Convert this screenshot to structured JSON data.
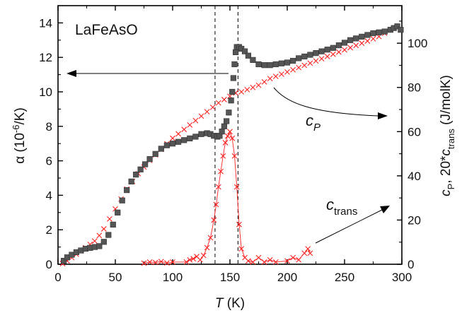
{
  "chart_data": {
    "type": "scatter",
    "sample_label": "LaFeAsO",
    "x_axis": {
      "label_italic": "T",
      "label_rest": " (K)",
      "range": [
        0,
        300
      ],
      "ticks": [
        0,
        50,
        100,
        150,
        200,
        250,
        300
      ],
      "tick_labels": [
        "0",
        "50",
        "100",
        "150",
        "200",
        "250",
        "300"
      ]
    },
    "y_left": {
      "label_prefix": "α (10",
      "label_sup": "-6",
      "label_suffix": "/K)",
      "range": [
        0,
        15
      ],
      "ticks": [
        0,
        2,
        4,
        6,
        8,
        10,
        12,
        14
      ],
      "tick_labels": [
        "0",
        "2",
        "4",
        "6",
        "8",
        "10",
        "12",
        "14"
      ]
    },
    "y_right": {
      "label_c1": "c",
      "label_sub1": "P",
      "label_mid": ", 20*",
      "label_c2": "c",
      "label_sub2": "trans",
      "label_units": " (J/molK)",
      "range": [
        0,
        117
      ],
      "ticks": [
        0,
        20,
        40,
        60,
        80,
        100
      ],
      "tick_labels": [
        "0",
        "20",
        "40",
        "60",
        "80",
        "100"
      ]
    },
    "vertical_dashed_lines_x": [
      137,
      157
    ],
    "annotations": {
      "cp_main": "c",
      "cp_sub": "P",
      "ctrans_main": "c",
      "ctrans_sub": "trans"
    },
    "series": [
      {
        "axis": "left",
        "marker": "square",
        "color": "#555555",
        "x": [
          5,
          8,
          12,
          16,
          20,
          24,
          28,
          32,
          36,
          40,
          44,
          48,
          52,
          56,
          60,
          64,
          68,
          72,
          76,
          80,
          85,
          90,
          95,
          100,
          105,
          110,
          115,
          120,
          125,
          130,
          133,
          136,
          139,
          141,
          143,
          145,
          147,
          149,
          151,
          152,
          153,
          154,
          155,
          156,
          158,
          160,
          163,
          166,
          170,
          175,
          180,
          185,
          190,
          195,
          200,
          205,
          210,
          215,
          220,
          225,
          230,
          235,
          240,
          245,
          250,
          255,
          260,
          265,
          270,
          275,
          280,
          285,
          290,
          293,
          296,
          299
        ],
        "y": [
          0.2,
          0.4,
          0.55,
          0.7,
          0.8,
          0.9,
          0.95,
          1.0,
          1.05,
          1.3,
          1.7,
          2.3,
          3.0,
          3.7,
          4.3,
          4.8,
          5.2,
          5.5,
          5.8,
          6.1,
          6.4,
          6.7,
          6.9,
          7.0,
          7.1,
          7.2,
          7.3,
          7.4,
          7.55,
          7.6,
          7.55,
          7.45,
          7.4,
          7.45,
          7.7,
          8.0,
          8.3,
          8.8,
          9.5,
          10.0,
          10.8,
          11.6,
          12.3,
          12.6,
          12.6,
          12.5,
          12.35,
          12.1,
          11.85,
          11.6,
          11.55,
          11.55,
          11.6,
          11.65,
          11.7,
          11.8,
          11.95,
          12.05,
          12.15,
          12.25,
          12.35,
          12.45,
          12.55,
          12.7,
          12.85,
          13.0,
          13.1,
          13.2,
          13.3,
          13.4,
          13.45,
          13.5,
          13.6,
          13.7,
          13.8,
          13.6
        ]
      },
      {
        "axis": "right",
        "marker": "x",
        "color": "#ff2222",
        "x": [
          4,
          8,
          12,
          16,
          20,
          24,
          28,
          32,
          36,
          40,
          45,
          50,
          55,
          60,
          65,
          70,
          75,
          80,
          85,
          90,
          95,
          100,
          105,
          110,
          115,
          120,
          125,
          130,
          135,
          140,
          145,
          150,
          155,
          160,
          165,
          170,
          175,
          180,
          185,
          190,
          195,
          200,
          205,
          210,
          215,
          220,
          225,
          230,
          235,
          240,
          245,
          250,
          255,
          260,
          265,
          270,
          275,
          280,
          285
        ],
        "y": [
          0.3,
          1.5,
          3,
          4.5,
          6,
          7.5,
          9,
          10.5,
          13,
          16,
          20.5,
          25,
          29.5,
          34,
          37.5,
          41,
          44,
          47,
          49.5,
          52,
          54.5,
          57,
          59,
          61,
          63,
          65,
          67,
          69,
          71,
          73,
          74.5,
          76,
          77.5,
          78,
          79,
          80,
          81,
          82.5,
          84,
          85,
          86,
          87,
          88,
          89,
          90,
          91,
          92,
          93,
          94,
          95,
          96,
          97,
          98,
          99,
          100,
          101,
          102,
          103,
          104.5
        ]
      },
      {
        "axis": "right",
        "marker": "x-line",
        "color": "#ff2222",
        "x": [
          75,
          80,
          85,
          90,
          95,
          100,
          112,
          115,
          118,
          121,
          124,
          127,
          130,
          133,
          136,
          138,
          140,
          142,
          144,
          146,
          148,
          150,
          152,
          154,
          156,
          158,
          160,
          163,
          166,
          170,
          175,
          180,
          185,
          190,
          200,
          205,
          210,
          215,
          218,
          220
        ],
        "y": [
          0.5,
          1,
          0.8,
          1.2,
          0.6,
          1.0,
          1.0,
          2.0,
          2.5,
          3.5,
          2.0,
          4.0,
          7.5,
          12,
          20,
          27,
          35,
          42,
          49,
          55,
          58,
          60,
          57,
          49,
          35,
          18,
          7,
          3,
          1.5,
          1.0,
          3,
          1,
          2,
          1,
          1.5,
          3,
          2,
          5,
          7,
          5
        ]
      }
    ]
  }
}
